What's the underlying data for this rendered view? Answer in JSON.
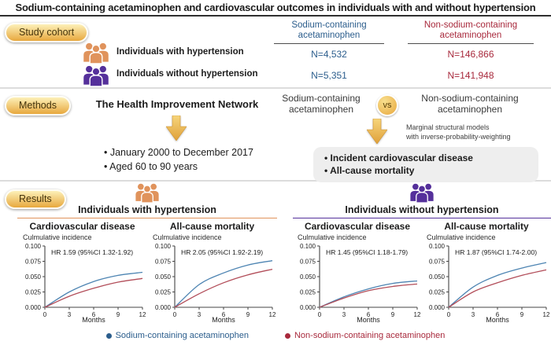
{
  "title": "Sodium-containing acetaminophen and cardiovascular outcomes in individuals with and without hypertension",
  "colors": {
    "sodium_blue": "#2b5d8c",
    "non_sodium_red": "#a8293c",
    "line_blue": "#4d84b2",
    "line_red": "#b24d59",
    "hypertension_orange": "#e0935c",
    "no_hypertension_purple": "#55309b",
    "gold_light": "#fdf0b8",
    "gold_dark": "#e8a83e",
    "separator": "#dcdcdc"
  },
  "cohort": {
    "badge": "Study cohort",
    "col_sodium": {
      "line1": "Sodium-containing",
      "line2": "acetaminophen"
    },
    "col_non_sodium": {
      "line1": "Non-sodium-containing",
      "line2": "acetaminophen"
    },
    "rows": [
      {
        "label": "Individuals with hypertension",
        "sodium_n": "N=4,532",
        "non_sodium_n": "N=146,866"
      },
      {
        "label": "Individuals without hypertension",
        "sodium_n": "N=5,351",
        "non_sodium_n": "N=141,948"
      }
    ]
  },
  "methods": {
    "badge": "Methods",
    "database": "The Health Improvement Network",
    "bullets": [
      "January 2000 to December 2017",
      "Aged 60 to 90 years"
    ],
    "comparison": {
      "left": {
        "line1": "Sodium-containing",
        "line2": "acetaminophen"
      },
      "vs": "vs",
      "right": {
        "line1": "Non-sodium-containing",
        "line2": "acetaminophen"
      }
    },
    "model_note": {
      "line1": "Marginal structural models",
      "line2": "with inverse-probability-weighting"
    },
    "outcomes": [
      "Incident cardiovascular disease",
      "All-cause mortality"
    ]
  },
  "results": {
    "badge": "Results",
    "groups": [
      {
        "title": "Individuals with hypertension"
      },
      {
        "title": "Individuals without hypertension"
      }
    ]
  },
  "legend": [
    {
      "label": "Sodium-containing acetaminophen",
      "color": "#2b5d8c"
    },
    {
      "label": "Non-sodium-containing acetaminophen",
      "color": "#a8293c"
    }
  ],
  "chart_data": [
    {
      "type": "line",
      "group": "Individuals with hypertension",
      "title": "Cardiovascular disease",
      "ylabel": "Culmulative incidence",
      "xlabel": "Months",
      "annotation": "HR 1.59 (95%CI 1.32-1.92)",
      "x": [
        0,
        3,
        6,
        9,
        12
      ],
      "xlim": [
        0,
        12
      ],
      "ylim": [
        0,
        0.1
      ],
      "yticks": [
        0.0,
        0.025,
        0.05,
        0.075,
        0.1
      ],
      "series": [
        {
          "name": "Sodium-containing acetaminophen",
          "color": "#4d84b2",
          "values": [
            0,
            0.025,
            0.042,
            0.052,
            0.057
          ]
        },
        {
          "name": "Non-sodium-containing acetaminophen",
          "color": "#b24d59",
          "values": [
            0,
            0.018,
            0.031,
            0.041,
            0.047
          ]
        }
      ]
    },
    {
      "type": "line",
      "group": "Individuals with hypertension",
      "title": "All-cause mortality",
      "ylabel": "Culmulative incidence",
      "xlabel": "Months",
      "annotation": "HR 2.05 (95%CI 1.92-2.19)",
      "x": [
        0,
        3,
        6,
        9,
        12
      ],
      "xlim": [
        0,
        12
      ],
      "ylim": [
        0,
        0.1
      ],
      "yticks": [
        0.0,
        0.025,
        0.05,
        0.075,
        0.1
      ],
      "series": [
        {
          "name": "Sodium-containing acetaminophen",
          "color": "#4d84b2",
          "values": [
            0,
            0.037,
            0.056,
            0.069,
            0.076
          ]
        },
        {
          "name": "Non-sodium-containing acetaminophen",
          "color": "#b24d59",
          "values": [
            0,
            0.022,
            0.04,
            0.053,
            0.062
          ]
        }
      ]
    },
    {
      "type": "line",
      "group": "Individuals without hypertension",
      "title": "Cardiovascular disease",
      "ylabel": "Culmulative incidence",
      "xlabel": "Months",
      "annotation": "HR 1.45 (95%CI 1.18-1.79)",
      "x": [
        0,
        3,
        6,
        9,
        12
      ],
      "xlim": [
        0,
        12
      ],
      "ylim": [
        0,
        0.1
      ],
      "yticks": [
        0.0,
        0.025,
        0.05,
        0.075,
        0.1
      ],
      "series": [
        {
          "name": "Sodium-containing acetaminophen",
          "color": "#4d84b2",
          "values": [
            0,
            0.017,
            0.03,
            0.039,
            0.043
          ]
        },
        {
          "name": "Non-sodium-containing acetaminophen",
          "color": "#b24d59",
          "values": [
            0,
            0.015,
            0.027,
            0.034,
            0.038
          ]
        }
      ]
    },
    {
      "type": "line",
      "group": "Individuals without hypertension",
      "title": "All-cause mortality",
      "ylabel": "Culmulative incidence",
      "xlabel": "Months",
      "annotation": "HR 1.87 (95%CI 1.74-2.00)",
      "x": [
        0,
        3,
        6,
        9,
        12
      ],
      "xlim": [
        0,
        12
      ],
      "ylim": [
        0,
        0.1
      ],
      "yticks": [
        0.0,
        0.025,
        0.05,
        0.075,
        0.1
      ],
      "series": [
        {
          "name": "Sodium-containing acetaminophen",
          "color": "#4d84b2",
          "values": [
            0,
            0.033,
            0.052,
            0.064,
            0.073
          ]
        },
        {
          "name": "Non-sodium-containing acetaminophen",
          "color": "#b24d59",
          "values": [
            0,
            0.025,
            0.04,
            0.052,
            0.061
          ]
        }
      ]
    }
  ]
}
